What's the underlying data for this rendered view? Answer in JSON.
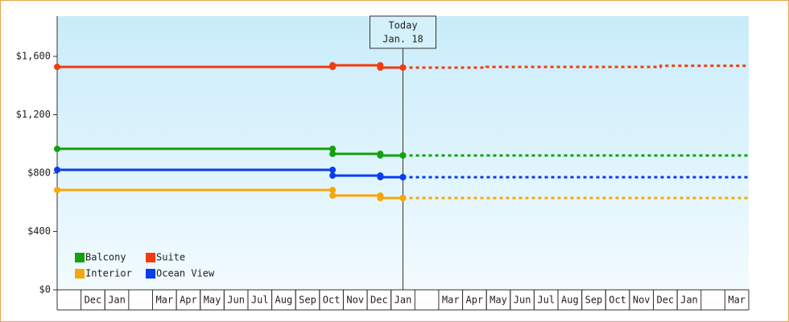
{
  "chart_data": {
    "type": "step-line",
    "categories": [
      null,
      "Dec",
      "Jan",
      null,
      "Mar",
      "Apr",
      "May",
      "Jun",
      "Jul",
      "Aug",
      "Sep",
      "Oct",
      "Nov",
      "Dec",
      "Jan",
      null,
      "Mar",
      "Apr",
      "May",
      "Jun",
      "Jul",
      "Aug",
      "Sep",
      "Oct",
      "Nov",
      "Dec",
      "Jan",
      null,
      "Mar"
    ],
    "xlim": [
      0,
      29
    ],
    "ylim": [
      0,
      1876
    ],
    "yticks": [
      {
        "value": 0,
        "label": "$0"
      },
      {
        "value": 400,
        "label": "$400"
      },
      {
        "value": 800,
        "label": "$800"
      },
      {
        "value": 1200,
        "label": "$1,200"
      },
      {
        "value": 1600,
        "label": "$1,600"
      }
    ],
    "annotation": {
      "x": 14.5,
      "line1": "Today",
      "line2": "Jan. 18"
    },
    "legend": "lower left",
    "series": [
      {
        "name": "Balcony",
        "color": "#13a10e",
        "x": [
          0,
          11.55,
          13.55,
          14.5
        ],
        "values": [
          966,
          932,
          921,
          921
        ],
        "forecast_x": [
          14.5,
          29
        ],
        "forecast_values": [
          921,
          921
        ]
      },
      {
        "name": "Suite",
        "color": "#f03c10",
        "x": [
          0,
          11.55,
          13.55,
          14.5
        ],
        "values": [
          1528,
          1539,
          1523,
          1523
        ],
        "forecast_x": [
          14.5,
          18,
          25.3,
          29
        ],
        "forecast_values": [
          1523,
          1528,
          1535,
          1535
        ]
      },
      {
        "name": "Interior",
        "color": "#f7a70a",
        "x": [
          0,
          11.55,
          13.55,
          14.5
        ],
        "values": [
          684,
          646,
          629,
          629
        ],
        "forecast_x": [
          14.5,
          29
        ],
        "forecast_values": [
          629,
          629
        ]
      },
      {
        "name": "Ocean View",
        "color": "#0a3cf0",
        "x": [
          0,
          11.55,
          13.55,
          14.5
        ],
        "values": [
          822,
          783,
          772,
          772
        ],
        "forecast_x": [
          14.5,
          29
        ],
        "forecast_values": [
          772,
          772
        ]
      }
    ]
  }
}
